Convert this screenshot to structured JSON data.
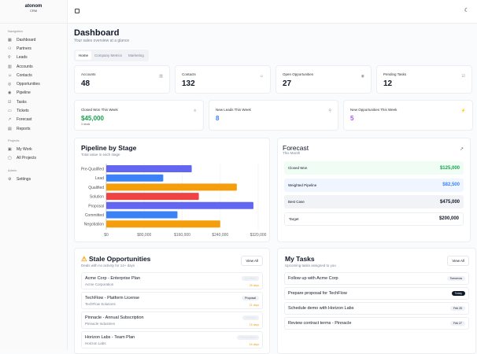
{
  "brand": {
    "name": "atonom",
    "sub": "CRM"
  },
  "sidebar": {
    "sections": [
      {
        "title": "Navigation",
        "items": [
          {
            "label": "Dashboard",
            "icon": "▦"
          },
          {
            "label": "Partners",
            "icon": "⚇"
          },
          {
            "label": "Leads",
            "icon": "⚲"
          },
          {
            "label": "Accounts",
            "icon": "▥"
          },
          {
            "label": "Contacts",
            "icon": "☺"
          },
          {
            "label": "Opportunities",
            "icon": "◎"
          },
          {
            "label": "Pipeline",
            "icon": "◉"
          },
          {
            "label": "Tasks",
            "icon": "☑"
          },
          {
            "label": "Tickets",
            "icon": "▭"
          },
          {
            "label": "Forecast",
            "icon": "↗"
          },
          {
            "label": "Reports",
            "icon": "▤"
          }
        ]
      },
      {
        "title": "Projects",
        "items": [
          {
            "label": "My Work",
            "icon": "▣"
          },
          {
            "label": "All Projects",
            "icon": "▢"
          }
        ]
      },
      {
        "title": "Admin",
        "items": [
          {
            "label": "Settings",
            "icon": "⚙"
          }
        ]
      }
    ]
  },
  "header": {
    "title": "Dashboard",
    "subtitle": "Your sales overview at a glance",
    "tabs": [
      "Home",
      "Company Metrics",
      "Marketing"
    ]
  },
  "stats": [
    {
      "label": "Accounts",
      "value": "48",
      "icon": "▥"
    },
    {
      "label": "Contacts",
      "value": "132",
      "icon": "☺"
    },
    {
      "label": "Open Opportunities",
      "value": "27",
      "icon": "◉"
    },
    {
      "label": "Pending Tasks",
      "value": "12",
      "icon": "☑"
    }
  ],
  "weekly": [
    {
      "label": "Closed Won This Week",
      "value": "$45,000",
      "note": "3 deals",
      "color": "#16a34a",
      "icon": "♕"
    },
    {
      "label": "New Leads This Week",
      "value": "8",
      "color": "#3b82f6",
      "icon": "⚲"
    },
    {
      "label": "New Opportunities This Week",
      "value": "5",
      "color": "#a855f7",
      "icon": "⚡"
    }
  ],
  "pipeline": {
    "title": "Pipeline by Stage",
    "subtitle": "Total value in each stage"
  },
  "chart_data": {
    "type": "bar",
    "orientation": "horizontal",
    "categories": [
      "Pre-Qualified",
      "Lead",
      "Qualified",
      "Solution",
      "Proposal",
      "Committed",
      "Negotiation"
    ],
    "values": [
      180000,
      120000,
      275000,
      195000,
      310000,
      150000,
      240000
    ],
    "colors": [
      "#6366f1",
      "#3b82f6",
      "#f59e0b",
      "#ef4444",
      "#6366f1",
      "#3b82f6",
      "#f59e0b"
    ],
    "xlim": [
      0,
      320000
    ],
    "xticks": [
      "$0",
      "$80,000",
      "$160,000",
      "$240,000",
      "$320,000"
    ],
    "grid": true
  },
  "forecast": {
    "title": "Forecast",
    "subtitle": "This Month",
    "rows": [
      {
        "label": "Closed Won",
        "value": "$125,000",
        "bg": "#f0fdf4",
        "color": "#16a34a"
      },
      {
        "label": "Weighted Pipeline",
        "value": "$82,500",
        "bg": "#eff6ff",
        "color": "#3b82f6"
      },
      {
        "label": "Best Case",
        "value": "$475,000",
        "bg": "#f1f3f6",
        "color": "#111827"
      },
      {
        "label": "Target",
        "value": "$200,000",
        "bg": "#ffffff",
        "color": "#111827"
      }
    ]
  },
  "stale": {
    "title": "Stale Opportunities",
    "subtitle": "Deals with no activity for 14+ days",
    "view_all": "View All",
    "items": [
      {
        "name": "Acme Corp - Enterprise Plan",
        "company": "Acme Corporation",
        "stage": "Qualified",
        "days": "28 days"
      },
      {
        "name": "TechFlow - Platform License",
        "company": "TechFlow Solutions",
        "stage": "Proposal",
        "days": "21 days"
      },
      {
        "name": "Pinnacle - Annual Subscription",
        "company": "Pinnacle Industries",
        "stage": "Solution",
        "days": "18 days"
      },
      {
        "name": "Horizon Labs - Team Plan",
        "company": "Horizon Labs",
        "stage": "Pre-Qualified",
        "days": "16 days"
      }
    ]
  },
  "tasks": {
    "title": "My Tasks",
    "subtitle": "Upcoming tasks assigned to you",
    "view_all": "View All",
    "items": [
      {
        "title": "Follow up with Acme Corp",
        "due": "Tomorrow"
      },
      {
        "title": "Prepare proposal for TechFlow",
        "due": "Today"
      },
      {
        "title": "Schedule demo with Horizon Labs",
        "due": "Feb 25"
      },
      {
        "title": "Review contract terms - Pinnacle",
        "due": "Feb 27"
      }
    ]
  }
}
